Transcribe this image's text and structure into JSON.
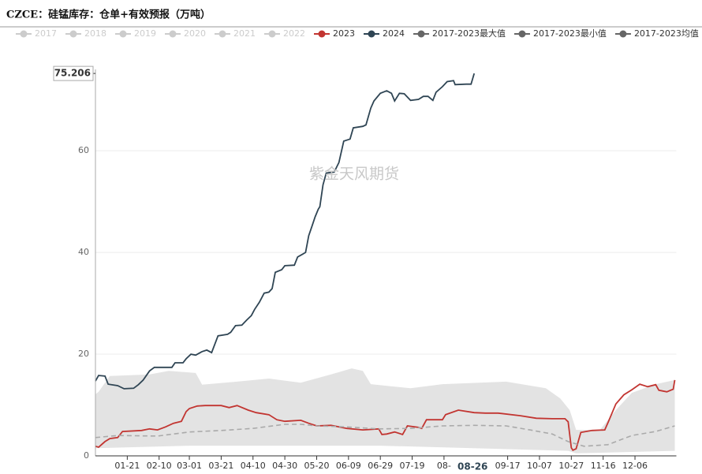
{
  "chart_data": {
    "type": "line",
    "title": "CZCE：硅锰库存：仓单+有效预报（万吨）",
    "watermark": "紫金天风期货",
    "hidden_series": [
      {
        "name": "2017",
        "color": "#cccccc"
      },
      {
        "name": "2018",
        "color": "#cccccc"
      },
      {
        "name": "2019",
        "color": "#cccccc"
      },
      {
        "name": "2020",
        "color": "#cccccc"
      },
      {
        "name": "2021",
        "color": "#cccccc"
      },
      {
        "name": "2022",
        "color": "#cccccc"
      }
    ],
    "series": [
      {
        "name": "2023",
        "color": "#c23531",
        "style": "line",
        "x": [
          1,
          3,
          7,
          10,
          15,
          18,
          30,
          35,
          40,
          45,
          50,
          55,
          58,
          60,
          65,
          70,
          80,
          85,
          90,
          97,
          102,
          110,
          115,
          120,
          130,
          135,
          140,
          149,
          154,
          159,
          169,
          179,
          181,
          184,
          189,
          194,
          197,
          204,
          206,
          209,
          219,
          221,
          229,
          239,
          246,
          254,
          268,
          278,
          288,
          296,
          298,
          300,
          301,
          303,
          306,
          313,
          321,
          323,
          328,
          333,
          338,
          343,
          348,
          353,
          355,
          360,
          364,
          365
        ],
        "values": [
          1.9,
          1.7,
          2.8,
          3.4,
          3.6,
          4.8,
          5.0,
          5.3,
          5.1,
          5.7,
          6.4,
          6.8,
          8.7,
          9.3,
          9.8,
          9.9,
          9.9,
          9.5,
          9.9,
          9.0,
          8.5,
          8.1,
          7.1,
          6.8,
          7.0,
          6.4,
          5.9,
          6.0,
          5.7,
          5.4,
          5.1,
          5.3,
          4.2,
          4.3,
          4.7,
          4.2,
          5.9,
          5.6,
          5.4,
          7.1,
          7.1,
          8.1,
          9.0,
          8.5,
          8.4,
          8.4,
          7.9,
          7.4,
          7.3,
          7.3,
          6.7,
          1.6,
          1.1,
          1.4,
          4.6,
          5.0,
          5.1,
          6.5,
          10.2,
          12.0,
          13.0,
          14.1,
          13.6,
          14.0,
          12.9,
          12.6,
          13.1,
          14.9
        ]
      },
      {
        "name": "2024",
        "color": "#2f4554",
        "style": "line",
        "x": [
          1,
          3,
          7,
          9,
          15,
          19,
          25,
          28,
          31,
          35,
          38,
          49,
          51,
          56,
          58,
          61,
          64,
          68,
          71,
          74,
          78,
          84,
          86,
          89,
          93,
          96,
          99,
          101,
          104,
          107,
          110,
          112,
          114,
          118,
          120,
          126,
          128,
          133,
          135,
          137,
          139,
          141,
          142,
          144,
          146,
          151,
          154,
          157,
          161,
          163,
          169,
          171,
          174,
          176,
          180,
          184,
          187,
          189,
          192,
          195,
          199,
          204,
          207,
          210,
          213,
          215,
          219,
          222,
          226,
          227,
          234,
          237,
          239
        ],
        "values": [
          14.7,
          15.8,
          15.7,
          14.1,
          13.8,
          13.2,
          13.3,
          14.0,
          14.9,
          16.7,
          17.4,
          17.4,
          18.3,
          18.3,
          19.1,
          20.0,
          19.8,
          20.5,
          20.8,
          20.3,
          23.6,
          23.9,
          24.3,
          25.6,
          25.7,
          26.7,
          27.6,
          28.8,
          30.2,
          32.0,
          32.2,
          32.9,
          36.1,
          36.6,
          37.4,
          37.5,
          39.1,
          40.0,
          43.3,
          45.1,
          47.0,
          48.5,
          49.0,
          53.3,
          55.6,
          55.8,
          57.7,
          61.9,
          62.3,
          64.5,
          64.8,
          65.1,
          68.4,
          69.8,
          71.3,
          71.8,
          71.3,
          69.8,
          71.3,
          71.2,
          69.9,
          70.1,
          70.7,
          70.7,
          69.9,
          71.5,
          72.6,
          73.6,
          73.8,
          73.0,
          73.1,
          73.1,
          75.206
        ]
      },
      {
        "name": "2017-2023最大值",
        "color": "#e3e3e3",
        "legend_color": "#666666",
        "style": "band-upper",
        "x": [
          1,
          3,
          10,
          35,
          47,
          64,
          68,
          90,
          110,
          130,
          149,
          162,
          169,
          174,
          199,
          219,
          259,
          284,
          293,
          299,
          303,
          318,
          328,
          338,
          353,
          365
        ],
        "values": [
          12.1,
          12.6,
          15.7,
          16.0,
          16.7,
          16.3,
          14.0,
          14.6,
          15.2,
          14.4,
          16.0,
          17.2,
          16.7,
          14.1,
          13.3,
          14.1,
          14.6,
          13.3,
          11.3,
          9.0,
          5.1,
          5.1,
          9.0,
          12.4,
          14.1,
          14.9
        ]
      },
      {
        "name": "2017-2023最小值",
        "color": "#ffffff",
        "legend_color": "#666666",
        "style": "band-lower",
        "x": [
          1,
          60,
          180,
          298,
          303,
          365
        ],
        "values": [
          1.5,
          2.0,
          2.0,
          1.0,
          0.5,
          1.0
        ]
      },
      {
        "name": "2017-2023均值",
        "color": "#aaaaaa",
        "legend_color": "#666666",
        "style": "dashed",
        "x": [
          1,
          15,
          40,
          60,
          80,
          100,
          120,
          130,
          140,
          159,
          179,
          199,
          219,
          239,
          259,
          274,
          288,
          298,
          308,
          323,
          338,
          353,
          365
        ],
        "values": [
          3.6,
          4.0,
          3.9,
          4.7,
          5.0,
          5.4,
          6.2,
          6.2,
          5.9,
          5.7,
          5.3,
          5.4,
          5.9,
          6.0,
          5.9,
          5.1,
          4.3,
          2.8,
          1.9,
          2.2,
          4.0,
          4.8,
          5.9
        ]
      }
    ],
    "xlim": [
      1,
      366
    ],
    "xticks": [
      {
        "value": 21,
        "label": "01-21"
      },
      {
        "value": 41,
        "label": "02-10"
      },
      {
        "value": 60,
        "label": "03-01"
      },
      {
        "value": 80,
        "label": "03-21"
      },
      {
        "value": 100,
        "label": "04-10"
      },
      {
        "value": 120,
        "label": "04-30"
      },
      {
        "value": 140,
        "label": "05-20"
      },
      {
        "value": 160,
        "label": "06-09"
      },
      {
        "value": 180,
        "label": "06-29"
      },
      {
        "value": 200,
        "label": "07-19"
      },
      {
        "value": 220,
        "label": "08-"
      },
      {
        "value": 260,
        "label": "09-17"
      },
      {
        "value": 280,
        "label": "10-07"
      },
      {
        "value": 300,
        "label": "10-27"
      },
      {
        "value": 320,
        "label": "11-16"
      },
      {
        "value": 340,
        "label": "12-06"
      }
    ],
    "ylim": [
      0,
      76
    ],
    "yticks": [
      0,
      20,
      40,
      60
    ],
    "grid": true,
    "axis_pointer": {
      "y": {
        "value": 75.206,
        "label": "75.206"
      },
      "x": {
        "value": 238,
        "label": "08-26"
      }
    }
  }
}
